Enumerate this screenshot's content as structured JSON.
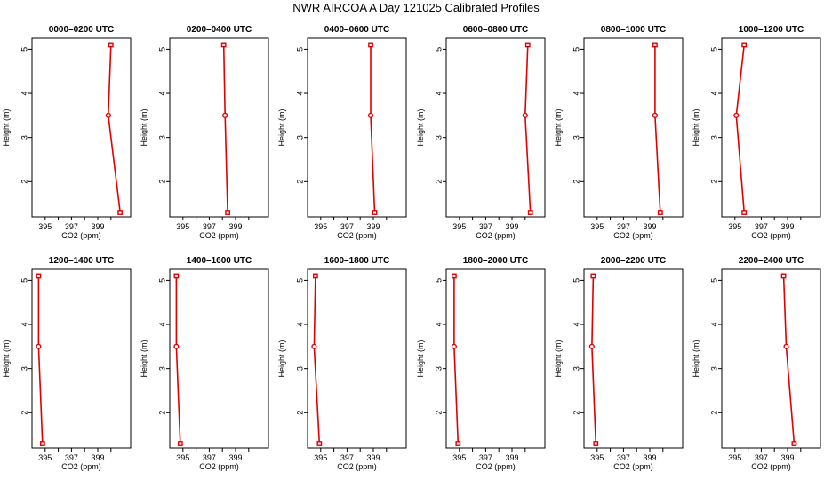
{
  "title": "NWR AIRCOA A  Day 121025  Calibrated Profiles",
  "chart_data": {
    "type": "line",
    "xlabel": "CO2 (ppm)",
    "ylabel": "Height (m)",
    "xlim": [
      394,
      401.5
    ],
    "ylim": [
      1.2,
      5.25
    ],
    "xticks": [
      395,
      397,
      399
    ],
    "yticks": [
      2,
      3,
      4,
      5
    ],
    "line_color": "#e00000",
    "panels": [
      {
        "title": "0000–0200 UTC",
        "x": [
          400.0,
          399.8,
          400.7
        ],
        "y": [
          5.1,
          3.5,
          1.3
        ]
      },
      {
        "title": "0200–0400 UTC",
        "x": [
          398.1,
          398.2,
          398.4
        ],
        "y": [
          5.1,
          3.5,
          1.3
        ]
      },
      {
        "title": "0400–0600 UTC",
        "x": [
          398.8,
          398.8,
          399.1
        ],
        "y": [
          5.1,
          3.5,
          1.3
        ]
      },
      {
        "title": "0600–0800 UTC",
        "x": [
          400.2,
          400.0,
          400.4
        ],
        "y": [
          5.1,
          3.5,
          1.3
        ]
      },
      {
        "title": "0800–1000 UTC",
        "x": [
          399.4,
          399.4,
          399.8
        ],
        "y": [
          5.1,
          3.5,
          1.3
        ]
      },
      {
        "title": "1000–1200 UTC",
        "x": [
          395.7,
          395.1,
          395.7
        ],
        "y": [
          5.1,
          3.5,
          1.3
        ]
      },
      {
        "title": "1200–1400 UTC",
        "x": [
          394.5,
          394.5,
          394.8
        ],
        "y": [
          5.1,
          3.5,
          1.3
        ]
      },
      {
        "title": "1400–1600 UTC",
        "x": [
          394.5,
          394.5,
          394.8
        ],
        "y": [
          5.1,
          3.5,
          1.3
        ]
      },
      {
        "title": "1600–1800 UTC",
        "x": [
          394.6,
          394.5,
          394.9
        ],
        "y": [
          5.1,
          3.5,
          1.3
        ]
      },
      {
        "title": "1800–2000 UTC",
        "x": [
          394.6,
          394.6,
          394.9
        ],
        "y": [
          5.1,
          3.5,
          1.3
        ]
      },
      {
        "title": "2000–2200 UTC",
        "x": [
          394.7,
          394.6,
          394.9
        ],
        "y": [
          5.1,
          3.5,
          1.3
        ]
      },
      {
        "title": "2200–2400 UTC",
        "x": [
          398.7,
          398.9,
          399.5
        ],
        "y": [
          5.1,
          3.5,
          1.3
        ]
      }
    ]
  }
}
